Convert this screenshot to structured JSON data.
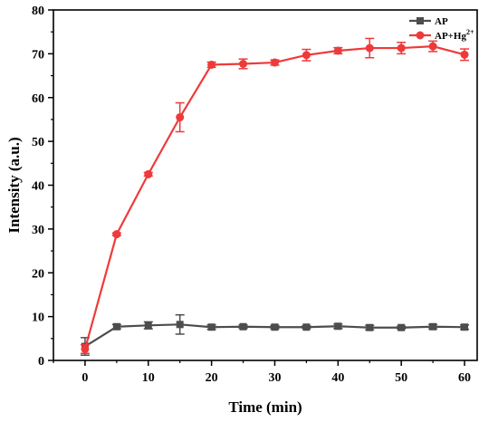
{
  "chart_data": {
    "type": "line",
    "xlabel": "Time (min)",
    "ylabel": "Intensity (a.u.)",
    "xlim": [
      -5,
      62
    ],
    "ylim": [
      0,
      80
    ],
    "xticks": [
      "0",
      "10",
      "20",
      "30",
      "40",
      "50",
      "60"
    ],
    "yticks": [
      "0",
      "10",
      "20",
      "30",
      "40",
      "50",
      "60",
      "70",
      "80"
    ],
    "x": [
      0,
      5,
      10,
      15,
      20,
      25,
      30,
      35,
      40,
      45,
      50,
      55,
      60
    ],
    "legend_position": "top-right",
    "grid": false,
    "series": [
      {
        "name": "AP",
        "color": "#4d4d4d",
        "marker": "square",
        "values": [
          3.2,
          7.7,
          8.0,
          8.2,
          7.6,
          7.7,
          7.6,
          7.6,
          7.8,
          7.5,
          7.5,
          7.7,
          7.6
        ],
        "errors": [
          2.0,
          0.5,
          0.8,
          2.2,
          0.5,
          0.4,
          0.4,
          0.3,
          0.5,
          0.5,
          0.3,
          0.5,
          0.5
        ]
      },
      {
        "name": "AP+Hg",
        "name_sup": "2+",
        "color": "#ee3a3a",
        "marker": "circle",
        "values": [
          2.6,
          28.8,
          42.5,
          55.5,
          67.5,
          67.7,
          68.0,
          69.7,
          70.7,
          71.3,
          71.3,
          71.7,
          69.8
        ],
        "errors": [
          1.0,
          0.3,
          0.4,
          3.3,
          0.6,
          1.1,
          0.6,
          1.3,
          0.7,
          2.2,
          1.3,
          1.2,
          1.3
        ]
      }
    ]
  }
}
